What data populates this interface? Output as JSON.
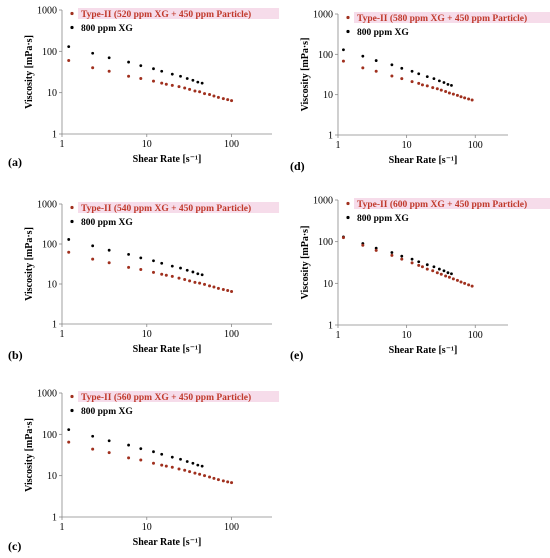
{
  "colors": {
    "type2": "#a0301e",
    "xg": "#000000",
    "legend_type2_text": "#c0392b",
    "legend_highlight": "#f6dcea"
  },
  "chart_data": [
    {
      "panel_label": "(a)",
      "type": "scatter",
      "xscale": "log",
      "yscale": "log",
      "xlabel": "Shear Rate [s⁻¹]",
      "ylabel": "Viscosity [mPa·s]",
      "xlim": [
        1,
        300
      ],
      "ylim": [
        1,
        1000
      ],
      "legend_placement": "top",
      "xticks": [
        "1",
        "10",
        "100"
      ],
      "yticks": [
        "1",
        "10",
        "100",
        "1000"
      ],
      "series": [
        {
          "name": "Type-II (520 ppm XG + 450 ppm Particle)",
          "x": [
            1.2,
            2.3,
            3.6,
            6.1,
            8.5,
            12,
            15,
            17,
            20,
            24,
            28,
            32,
            37,
            42,
            48,
            55,
            62,
            70,
            80,
            90,
            100
          ],
          "y": [
            60,
            40,
            33,
            25,
            22,
            19,
            17,
            16,
            15,
            14,
            13,
            12,
            11,
            10.5,
            9.5,
            9,
            8.3,
            7.7,
            7.2,
            6.8,
            6.4
          ]
        },
        {
          "name": "800 ppm XG",
          "x": [
            1.2,
            2.3,
            3.6,
            6.1,
            8.5,
            12,
            15,
            20,
            25,
            30,
            35,
            40,
            45
          ],
          "y": [
            130,
            90,
            70,
            55,
            45,
            38,
            33,
            28,
            25,
            22,
            20,
            18,
            17
          ]
        }
      ]
    },
    {
      "panel_label": "(b)",
      "type": "scatter",
      "xscale": "log",
      "yscale": "log",
      "xlabel": "Shear Rate [s⁻¹]",
      "ylabel": "Viscosity [mPa·s]",
      "xlim": [
        1,
        300
      ],
      "ylim": [
        1,
        1000
      ],
      "legend_placement": "top",
      "xticks": [
        "1",
        "10",
        "100"
      ],
      "yticks": [
        "1",
        "10",
        "100",
        "1000"
      ],
      "series": [
        {
          "name": "Type-II (540 ppm XG + 450 ppm Particle)",
          "x": [
            1.2,
            2.3,
            3.6,
            6.1,
            8.5,
            12,
            15,
            17,
            20,
            24,
            28,
            32,
            37,
            42,
            48,
            55,
            62,
            70,
            80,
            90,
            100
          ],
          "y": [
            62,
            42,
            34,
            26,
            23,
            19.5,
            17.5,
            16.5,
            15.5,
            14,
            13,
            12,
            11,
            10.5,
            9.8,
            9,
            8.4,
            7.8,
            7.3,
            6.9,
            6.5
          ]
        },
        {
          "name": "800 ppm XG",
          "x": [
            1.2,
            2.3,
            3.6,
            6.1,
            8.5,
            12,
            15,
            20,
            25,
            30,
            35,
            40,
            45
          ],
          "y": [
            130,
            90,
            70,
            55,
            45,
            38,
            33,
            28,
            25,
            22,
            20,
            18,
            17
          ]
        }
      ]
    },
    {
      "panel_label": "(c)",
      "type": "scatter",
      "xscale": "log",
      "yscale": "log",
      "xlabel": "Shear Rate [s⁻¹]",
      "ylabel": "Viscosity [mPa·s]",
      "xlim": [
        1,
        300
      ],
      "ylim": [
        1,
        1000
      ],
      "legend_placement": "top",
      "xticks": [
        "1",
        "10",
        "100"
      ],
      "yticks": [
        "1",
        "10",
        "100",
        "1000"
      ],
      "series": [
        {
          "name": "Type-II (560 ppm XG + 450 ppm Particle)",
          "x": [
            1.2,
            2.3,
            3.6,
            6.1,
            8.5,
            12,
            15,
            17,
            20,
            24,
            28,
            32,
            37,
            42,
            48,
            55,
            62,
            70,
            80,
            90,
            100
          ],
          "y": [
            65,
            44,
            36,
            27,
            24,
            20,
            18,
            17,
            16,
            14.5,
            13.5,
            12.5,
            11.5,
            10.8,
            10,
            9.3,
            8.6,
            8,
            7.5,
            7.1,
            6.8
          ]
        },
        {
          "name": "800 ppm XG",
          "x": [
            1.2,
            2.3,
            3.6,
            6.1,
            8.5,
            12,
            15,
            20,
            25,
            30,
            35,
            40,
            45
          ],
          "y": [
            130,
            90,
            70,
            55,
            45,
            38,
            33,
            28,
            25,
            22,
            20,
            18,
            17
          ]
        }
      ]
    },
    {
      "panel_label": "(d)",
      "type": "scatter",
      "xscale": "log",
      "yscale": "log",
      "xlabel": "Shear Rate [s⁻¹]",
      "ylabel": "Viscosity [mPa·s]",
      "xlim": [
        1,
        300
      ],
      "ylim": [
        1,
        1000
      ],
      "legend_placement": "top",
      "xticks": [
        "1",
        "10",
        "100"
      ],
      "yticks": [
        "1",
        "10",
        "100",
        "1000"
      ],
      "series": [
        {
          "name": "Type-II (580 ppm XG + 450 ppm Particle)",
          "x": [
            1.2,
            2.3,
            3.6,
            6.1,
            8.5,
            12,
            15,
            17,
            20,
            24,
            28,
            32,
            37,
            42,
            48,
            55,
            62,
            70,
            80,
            90
          ],
          "y": [
            68,
            46,
            38,
            29,
            25,
            21,
            19,
            17.5,
            16.5,
            15,
            14,
            13,
            12,
            11,
            10.3,
            9.6,
            8.9,
            8.3,
            7.8,
            7.4
          ]
        },
        {
          "name": "800 ppm XG",
          "x": [
            1.2,
            2.3,
            3.6,
            6.1,
            8.5,
            12,
            15,
            20,
            25,
            30,
            35,
            40,
            45
          ],
          "y": [
            130,
            90,
            70,
            55,
            45,
            38,
            33,
            28,
            25,
            22,
            20,
            18,
            17
          ]
        }
      ]
    },
    {
      "panel_label": "(e)",
      "type": "scatter",
      "xscale": "log",
      "yscale": "log",
      "xlabel": "Shear Rate [s⁻¹]",
      "ylabel": "Viscosity [mPa·s]",
      "xlim": [
        1,
        300
      ],
      "ylim": [
        1,
        1000
      ],
      "legend_placement": "top",
      "xticks": [
        "1",
        "10",
        "100"
      ],
      "yticks": [
        "1",
        "10",
        "100",
        "1000"
      ],
      "series": [
        {
          "name": "Type-II (600 ppm XG + 450 ppm Particle)",
          "x": [
            1.2,
            2.3,
            3.6,
            6.1,
            8.5,
            12,
            15,
            17,
            20,
            24,
            28,
            32,
            37,
            42,
            48,
            55,
            62,
            70,
            80,
            90
          ],
          "y": [
            125,
            82,
            62,
            47,
            38,
            31,
            27,
            25,
            22,
            20,
            18,
            16.5,
            15,
            14,
            12.8,
            11.8,
            10.8,
            10,
            9.2,
            8.6
          ]
        },
        {
          "name": "800 ppm XG",
          "x": [
            1.2,
            2.3,
            3.6,
            6.1,
            8.5,
            12,
            15,
            20,
            25,
            30,
            35,
            40,
            45
          ],
          "y": [
            130,
            90,
            70,
            55,
            45,
            38,
            33,
            28,
            25,
            22,
            20,
            18,
            17
          ]
        }
      ]
    }
  ]
}
